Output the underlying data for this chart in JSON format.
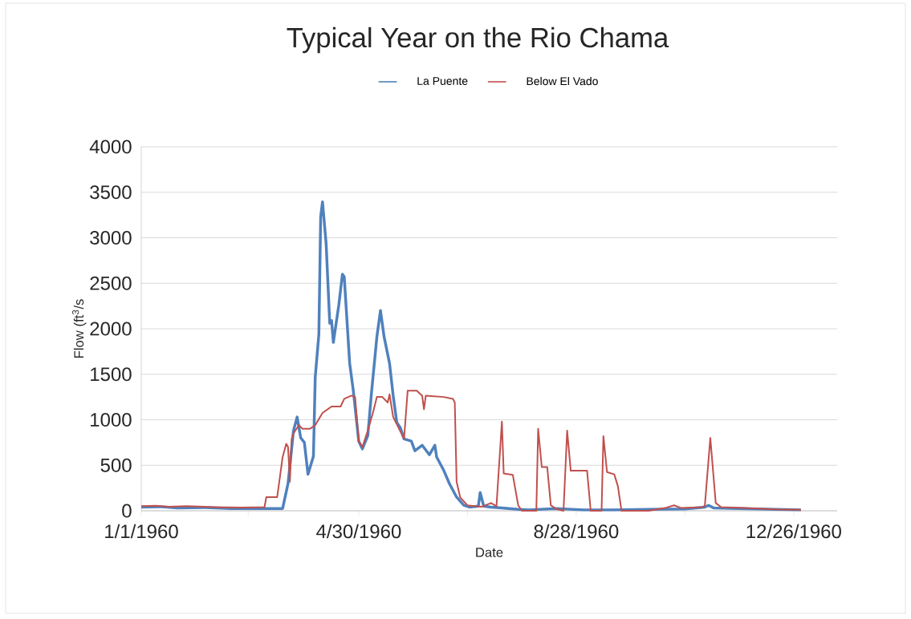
{
  "chart_data": {
    "type": "line",
    "title": "Typical Year on the Rio Chama",
    "xlabel": "Date",
    "ylabel": "Flow (ft$^{3}$/s",
    "xlim": [
      "1960-01-01",
      "1961-01-19"
    ],
    "xticks": [
      {
        "value": "1960-01-01",
        "label": "1/1/1960"
      },
      {
        "value": "1960-02-29",
        "label": null
      },
      {
        "value": "1960-04-30",
        "label": "4/30/1960"
      },
      {
        "value": "1960-06-29",
        "label": null
      },
      {
        "value": "1960-08-28",
        "label": "8/28/1960"
      },
      {
        "value": "1960-10-27",
        "label": null
      },
      {
        "value": "1960-12-26",
        "label": "12/26/1960"
      }
    ],
    "ylim": [
      0,
      4000
    ],
    "yticks": [
      0,
      500,
      1000,
      1500,
      2000,
      2500,
      3000,
      3500,
      4000
    ],
    "grid": "y",
    "legend": "top",
    "marker": "none",
    "line_style": "solid",
    "series": [
      {
        "name": "La Puente",
        "color": "#4f81bd",
        "x": [
          "1960-01-01",
          "1960-01-11",
          "1960-01-21",
          "1960-02-05",
          "1960-02-20",
          "1960-03-06",
          "1960-03-19",
          "1960-03-22",
          "1960-03-25",
          "1960-03-27",
          "1960-03-29",
          "1960-03-31",
          "1960-04-02",
          "1960-04-05",
          "1960-04-06",
          "1960-04-08",
          "1960-04-09",
          "1960-04-10",
          "1960-04-12",
          "1960-04-14",
          "1960-04-15",
          "1960-04-16",
          "1960-04-19",
          "1960-04-21",
          "1960-04-22",
          "1960-04-25",
          "1960-04-27",
          "1960-04-30",
          "1960-05-02",
          "1960-05-05",
          "1960-05-07",
          "1960-05-09",
          "1960-05-10",
          "1960-05-12",
          "1960-05-14",
          "1960-05-17",
          "1960-05-19",
          "1960-05-21",
          "1960-05-23",
          "1960-05-25",
          "1960-05-29",
          "1960-05-31",
          "1960-06-04",
          "1960-06-08",
          "1960-06-11",
          "1960-06-12",
          "1960-06-16",
          "1960-06-19",
          "1960-06-23",
          "1960-06-27",
          "1960-06-30",
          "1960-07-05",
          "1960-07-06",
          "1960-07-08",
          "1960-07-12",
          "1960-07-18",
          "1960-07-27",
          "1960-08-02",
          "1960-08-17",
          "1960-09-01",
          "1960-09-17",
          "1960-10-07",
          "1960-10-27",
          "1960-11-07",
          "1960-11-09",
          "1960-11-12",
          "1960-11-26",
          "1960-12-16",
          "1960-12-30"
        ],
        "values": [
          40,
          45,
          30,
          35,
          25,
          25,
          25,
          300,
          880,
          1030,
          800,
          750,
          400,
          600,
          1470,
          1940,
          3230,
          3395,
          2940,
          2060,
          2090,
          1850,
          2260,
          2600,
          2570,
          1620,
          1320,
          765,
          680,
          825,
          1290,
          1700,
          1910,
          2200,
          1910,
          1620,
          1265,
          970,
          910,
          790,
          765,
          660,
          720,
          615,
          720,
          590,
          440,
          300,
          150,
          60,
          40,
          50,
          200,
          50,
          40,
          30,
          15,
          10,
          25,
          10,
          10,
          15,
          20,
          40,
          60,
          30,
          25,
          15,
          10
        ]
      },
      {
        "name": "Below El Vado",
        "color": "#c0504d",
        "x": [
          "1960-01-01",
          "1960-01-09",
          "1960-01-16",
          "1960-01-26",
          "1960-02-10",
          "1960-02-25",
          "1960-03-09",
          "1960-03-10",
          "1960-03-16",
          "1960-03-19",
          "1960-03-21",
          "1960-03-22",
          "1960-03-23",
          "1960-03-24",
          "1960-03-25",
          "1960-03-28",
          "1960-03-30",
          "1960-04-03",
          "1960-04-06",
          "1960-04-10",
          "1960-04-15",
          "1960-04-20",
          "1960-04-22",
          "1960-04-26",
          "1960-04-28",
          "1960-04-30",
          "1960-05-02",
          "1960-05-05",
          "1960-05-08",
          "1960-05-10",
          "1960-05-13",
          "1960-05-16",
          "1960-05-17",
          "1960-05-19",
          "1960-05-21",
          "1960-05-25",
          "1960-05-27",
          "1960-06-01",
          "1960-06-04",
          "1960-06-05",
          "1960-06-06",
          "1960-06-09",
          "1960-06-16",
          "1960-06-21",
          "1960-06-22",
          "1960-06-23",
          "1960-06-25",
          "1960-06-29",
          "1960-07-03",
          "1960-07-07",
          "1960-07-12",
          "1960-07-15",
          "1960-07-18",
          "1960-07-19",
          "1960-07-24",
          "1960-07-27",
          "1960-07-29",
          "1960-08-06",
          "1960-08-07",
          "1960-08-09",
          "1960-08-12",
          "1960-08-14",
          "1960-08-17",
          "1960-08-21",
          "1960-08-23",
          "1960-08-25",
          "1960-09-03",
          "1960-09-05",
          "1960-09-11",
          "1960-09-12",
          "1960-09-14",
          "1960-09-18",
          "1960-09-20",
          "1960-09-22",
          "1960-10-07",
          "1960-10-16",
          "1960-10-21",
          "1960-10-25",
          "1960-11-06",
          "1960-11-07",
          "1960-11-10",
          "1960-11-13",
          "1960-11-16",
          "1960-11-29",
          "1960-12-16",
          "1960-12-30"
        ],
        "values": [
          50,
          55,
          45,
          50,
          40,
          35,
          40,
          150,
          150,
          590,
          735,
          700,
          320,
          790,
          850,
          940,
          900,
          900,
          940,
          1075,
          1145,
          1145,
          1230,
          1265,
          1250,
          765,
          700,
          880,
          1090,
          1250,
          1250,
          1190,
          1280,
          1030,
          950,
          790,
          1320,
          1320,
          1265,
          1115,
          1265,
          1260,
          1250,
          1230,
          1190,
          320,
          145,
          60,
          50,
          45,
          85,
          50,
          980,
          410,
          395,
          60,
          0,
          0,
          900,
          480,
          480,
          60,
          20,
          0,
          880,
          440,
          440,
          0,
          0,
          820,
          425,
          400,
          270,
          0,
          0,
          30,
          60,
          30,
          40,
          60,
          800,
          85,
          40,
          30,
          15,
          10
        ]
      }
    ]
  }
}
